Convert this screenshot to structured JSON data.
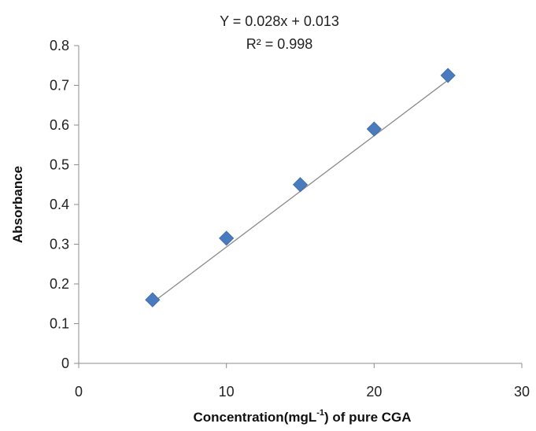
{
  "chart_data": {
    "type": "scatter",
    "title": "",
    "equation": "Y = 0.028x + 0.013",
    "r_squared": "R² = 0.998",
    "xlabel_main": "Concentration(mgL",
    "xlabel_sup": "-1",
    "xlabel_tail": ") of pure CGA",
    "ylabel": "Absorbance",
    "xlim": [
      0,
      30
    ],
    "ylim": [
      0,
      0.8
    ],
    "x_ticks": [
      0,
      10,
      20,
      30
    ],
    "y_ticks": [
      0,
      0.1,
      0.2,
      0.3,
      0.4,
      0.5,
      0.6,
      0.7,
      0.8
    ],
    "x_tick_labels": [
      "0",
      "10",
      "20",
      "30"
    ],
    "y_tick_labels": [
      "0",
      "0.1",
      "0.2",
      "0.3",
      "0.4",
      "0.5",
      "0.6",
      "0.7",
      "0.8"
    ],
    "grid": false,
    "legend": "none",
    "series": [
      {
        "marker": "diamond",
        "color": "#4a7bbf",
        "x": [
          5,
          10,
          15,
          20,
          25
        ],
        "y": [
          0.16,
          0.315,
          0.45,
          0.59,
          0.725
        ]
      }
    ],
    "trendline": {
      "slope": 0.028,
      "intercept": 0.013,
      "x_range": [
        5,
        25
      ],
      "color": "#8a8a8a"
    }
  }
}
